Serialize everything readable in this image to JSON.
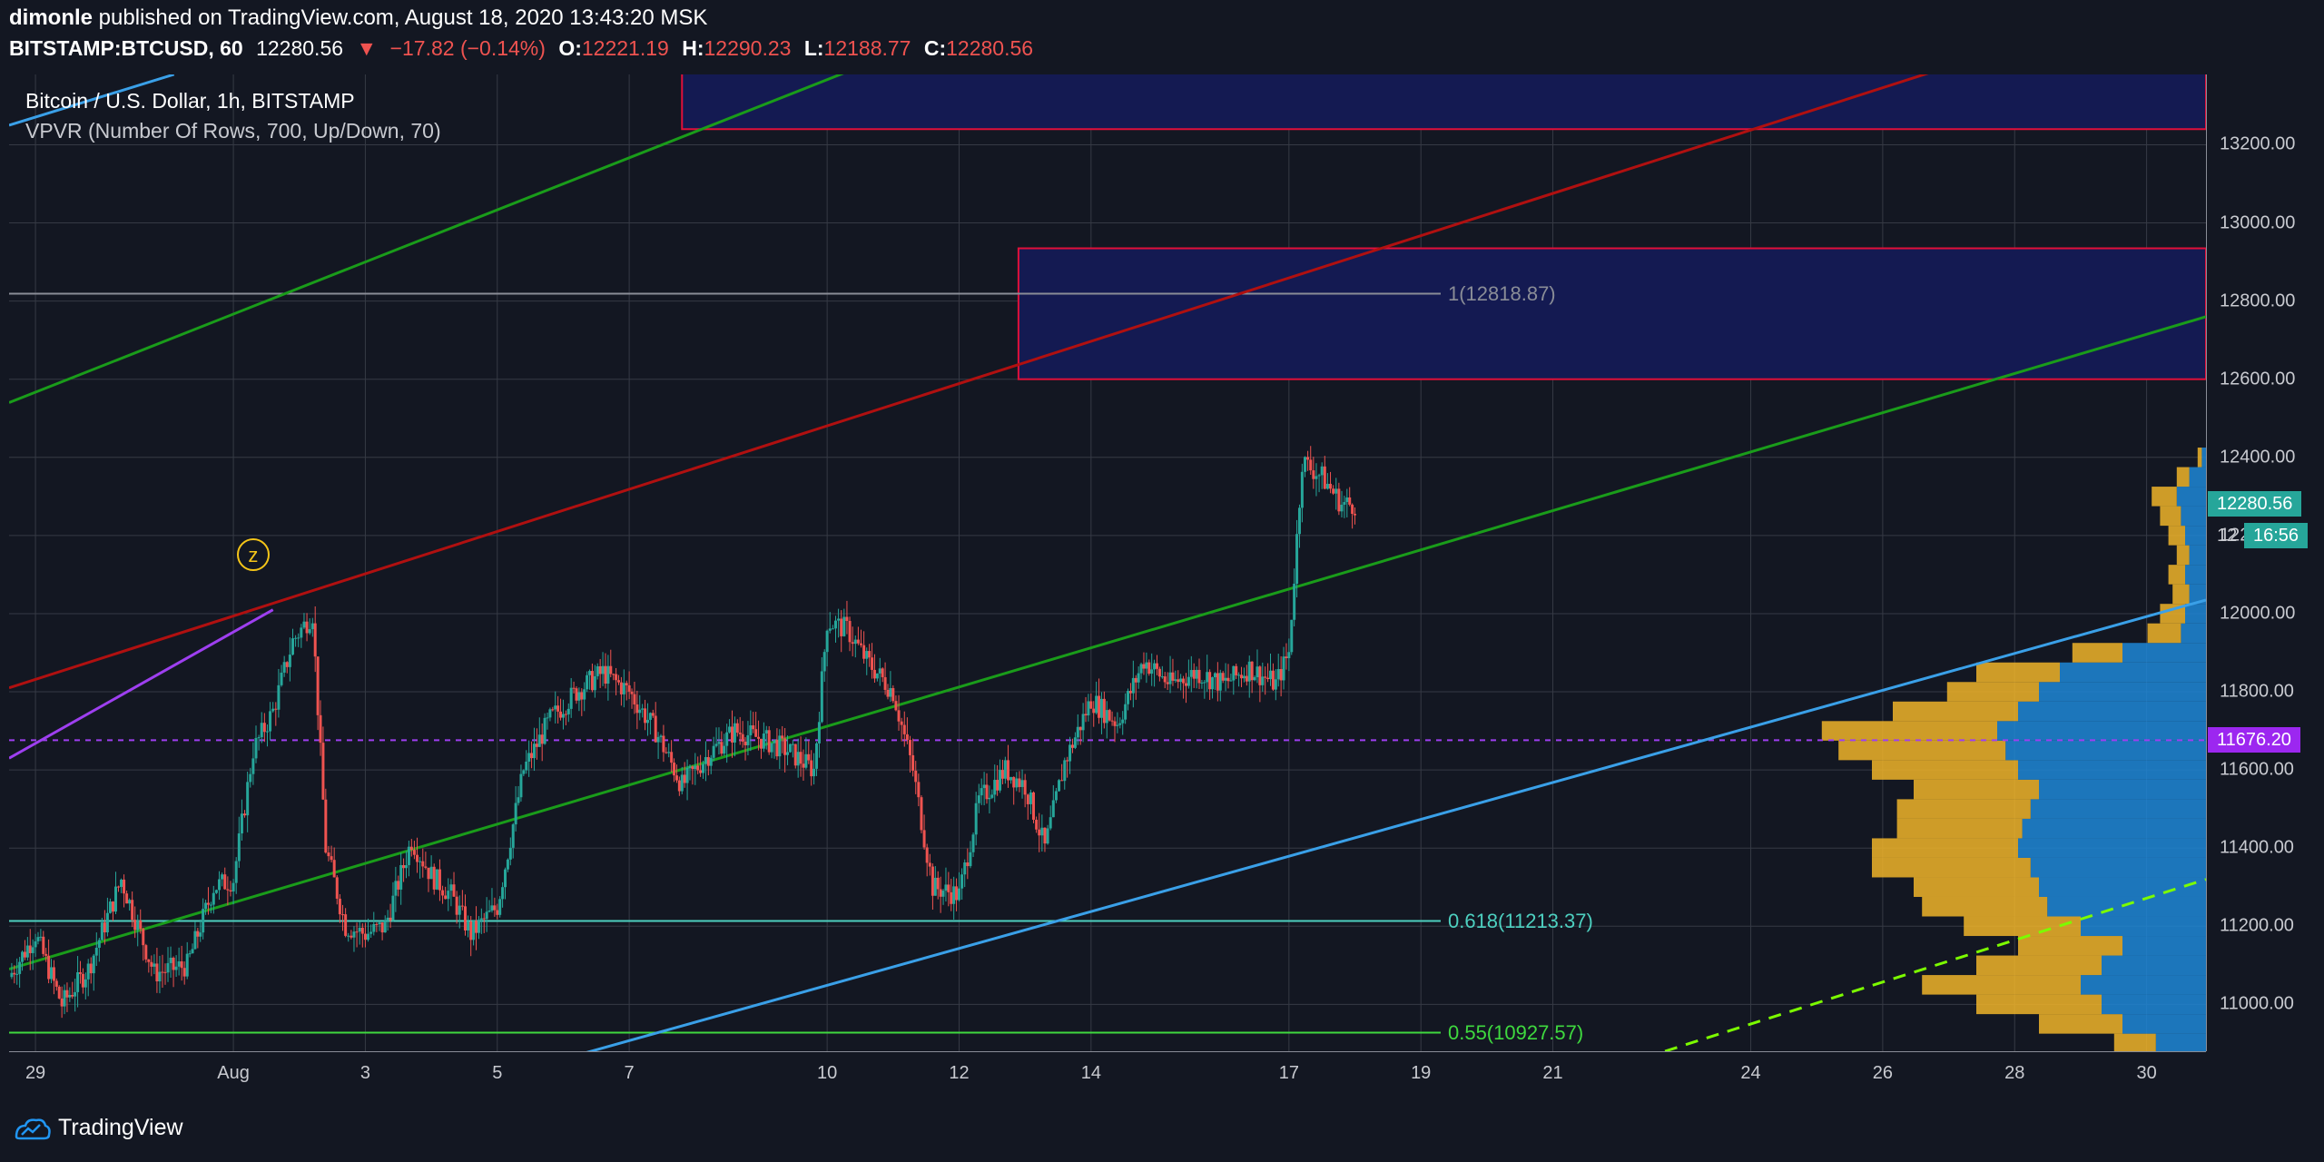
{
  "header": {
    "author": "dimonle",
    "published_text": " published on TradingView.com, August 18, 2020 13:43:20 MSK",
    "symbol": "BITSTAMP:BTCUSD, 60",
    "last": "12280.56",
    "change_arrow": "▼",
    "change": "−17.82 (−0.14%)",
    "o_label": "O:",
    "o_value": "12221.19",
    "h_label": "H:",
    "h_value": "12290.23",
    "l_label": "L:",
    "l_value": "12188.77",
    "c_label": "C:",
    "c_value": "12280.56"
  },
  "legend": {
    "title": "Bitcoin / U.S. Dollar, 1h, BITSTAMP",
    "vpvr": "VPVR (Number Of Rows, 700, Up/Down, 70)"
  },
  "annotations": {
    "fib_1": "1(12818.87)",
    "fib_0618": "0.618(11213.37)",
    "fib_055": "0.55(10927.57)",
    "z_marker": "z"
  },
  "badges": {
    "last_price": "12280.56",
    "countdown": "16:56",
    "poc_price": "11676.20",
    "hidden_price": "12"
  },
  "footer": {
    "brand": "TradingView"
  },
  "colors": {
    "background": "#131722",
    "grid": "#363a45",
    "up": "#26a69a",
    "down": "#ef5350",
    "vpvr_up": "#f0b429",
    "vpvr_down": "#1f87d6",
    "channel_green": "#1a9c1a",
    "channel_red": "#b01010",
    "blue_line": "#3aa0e8",
    "purple": "#9e3ff0",
    "zone_fill": "#141a52",
    "zone_border": "#e0103a"
  },
  "chart_data": {
    "type": "candlestick",
    "title": "Bitcoin / U.S. Dollar, 1h, BITSTAMP",
    "symbol": "BITSTAMP:BTCUSD",
    "interval": "60",
    "ylim": [
      10880,
      13380
    ],
    "yticks": [
      11000,
      11200,
      11400,
      11600,
      11800,
      12000,
      12200,
      12400,
      12600,
      12800,
      13000,
      13200
    ],
    "ytick_labels": [
      "11000.00",
      "11200.00",
      "11400.00",
      "11600.00",
      "11800.00",
      "12000.00",
      "12200.00",
      "12400.00",
      "12600.00",
      "12800.00",
      "13000.00",
      "13200.00"
    ],
    "xlim": [
      28.6,
      61.9
    ],
    "xticks": [
      29,
      32,
      34,
      36,
      38,
      41,
      43,
      45,
      48,
      50,
      52,
      55,
      57,
      59,
      61
    ],
    "xtick_labels": [
      "29",
      "Aug",
      "3",
      "5",
      "7",
      "10",
      "12",
      "14",
      "17",
      "19",
      "21",
      "24",
      "26",
      "28",
      "30"
    ],
    "grid": true,
    "price_path": [
      [
        28.6,
        11070
      ],
      [
        29.0,
        11180
      ],
      [
        29.4,
        11000
      ],
      [
        29.8,
        11090
      ],
      [
        30.3,
        11320
      ],
      [
        30.8,
        11080
      ],
      [
        31.3,
        11100
      ],
      [
        31.7,
        11300
      ],
      [
        32.0,
        11320
      ],
      [
        32.3,
        11650
      ],
      [
        32.6,
        11750
      ],
      [
        32.9,
        11930
      ],
      [
        33.2,
        12000
      ],
      [
        33.4,
        11400
      ],
      [
        33.7,
        11200
      ],
      [
        34.0,
        11180
      ],
      [
        34.3,
        11200
      ],
      [
        34.7,
        11420
      ],
      [
        35.0,
        11330
      ],
      [
        35.3,
        11280
      ],
      [
        35.6,
        11180
      ],
      [
        36.0,
        11250
      ],
      [
        36.4,
        11600
      ],
      [
        36.8,
        11730
      ],
      [
        37.2,
        11800
      ],
      [
        37.6,
        11850
      ],
      [
        38.0,
        11800
      ],
      [
        38.4,
        11700
      ],
      [
        38.8,
        11560
      ],
      [
        39.2,
        11640
      ],
      [
        39.6,
        11700
      ],
      [
        40.0,
        11680
      ],
      [
        40.4,
        11650
      ],
      [
        40.8,
        11600
      ],
      [
        41.0,
        11980
      ],
      [
        41.3,
        11960
      ],
      [
        41.6,
        11880
      ],
      [
        42.0,
        11800
      ],
      [
        42.3,
        11600
      ],
      [
        42.6,
        11300
      ],
      [
        43.0,
        11280
      ],
      [
        43.3,
        11520
      ],
      [
        43.7,
        11600
      ],
      [
        44.0,
        11560
      ],
      [
        44.3,
        11400
      ],
      [
        44.6,
        11620
      ],
      [
        45.0,
        11780
      ],
      [
        45.4,
        11720
      ],
      [
        45.8,
        11880
      ],
      [
        46.2,
        11820
      ],
      [
        46.6,
        11850
      ],
      [
        47.0,
        11820
      ],
      [
        47.4,
        11860
      ],
      [
        47.8,
        11820
      ],
      [
        48.0,
        11900
      ],
      [
        48.2,
        12390
      ],
      [
        48.5,
        12350
      ],
      [
        48.8,
        12280
      ],
      [
        49.0,
        12280
      ]
    ],
    "channels": [
      {
        "name": "",
        "color": "green",
        "points": [
          [
            28.6,
            12540
          ],
          [
            43.0,
            13500
          ]
        ]
      },
      {
        "name": "",
        "color": "green",
        "points": [
          [
            28.6,
            11090
          ],
          [
            61.9,
            12760
          ]
        ]
      },
      {
        "name": "",
        "color": "red",
        "points": [
          [
            28.6,
            11810
          ],
          [
            58.0,
            13400
          ]
        ]
      },
      {
        "name": "",
        "color": "blue",
        "points": [
          [
            37.0,
            10860
          ],
          [
            61.9,
            12035
          ]
        ]
      },
      {
        "name": "",
        "color": "blue",
        "points": [
          [
            28.6,
            13250
          ],
          [
            31.1,
            13380
          ]
        ]
      },
      {
        "name": "",
        "color": "purple",
        "points": [
          [
            28.6,
            11630
          ],
          [
            32.6,
            12010
          ]
        ]
      },
      {
        "name": "",
        "color": "lime_dashed",
        "points": [
          [
            53.7,
            10880
          ],
          [
            61.9,
            11320
          ]
        ]
      }
    ],
    "zones": [
      {
        "x": [
          38.8,
          61.9
        ],
        "y": [
          13240,
          13400
        ]
      },
      {
        "x": [
          43.9,
          61.9
        ],
        "y": [
          12600,
          12935
        ]
      }
    ],
    "horizontal_levels": [
      {
        "label": "1(12818.87)",
        "value": 12818.87,
        "x_end": 50.3
      },
      {
        "label": "0.618(11213.37)",
        "value": 11213.37,
        "x_end": 50.3
      },
      {
        "label": "0.55(10927.57)",
        "value": 10927.57,
        "x_end": 50.3
      },
      {
        "label": "11676.20",
        "value": 11676.2,
        "style": "dashed"
      }
    ],
    "volume_profile": {
      "price_step": 50,
      "prices": [
        10900,
        10950,
        11000,
        11050,
        11100,
        11150,
        11200,
        11250,
        11300,
        11350,
        11400,
        11450,
        11500,
        11550,
        11600,
        11650,
        11700,
        11750,
        11800,
        11850,
        11900,
        11950,
        12000,
        12050,
        12100,
        12150,
        12200,
        12250,
        12300,
        12350,
        12400
      ],
      "up": [
        0.1,
        0.2,
        0.3,
        0.38,
        0.3,
        0.25,
        0.28,
        0.3,
        0.3,
        0.38,
        0.35,
        0.3,
        0.32,
        0.3,
        0.35,
        0.4,
        0.42,
        0.3,
        0.22,
        0.2,
        0.12,
        0.08,
        0.06,
        0.04,
        0.04,
        0.03,
        0.04,
        0.05,
        0.06,
        0.03,
        0.01
      ],
      "down": [
        0.12,
        0.2,
        0.25,
        0.3,
        0.25,
        0.2,
        0.3,
        0.38,
        0.4,
        0.42,
        0.45,
        0.44,
        0.42,
        0.4,
        0.45,
        0.48,
        0.5,
        0.45,
        0.4,
        0.35,
        0.2,
        0.06,
        0.05,
        0.04,
        0.05,
        0.04,
        0.05,
        0.06,
        0.07,
        0.04,
        0.01
      ]
    }
  }
}
